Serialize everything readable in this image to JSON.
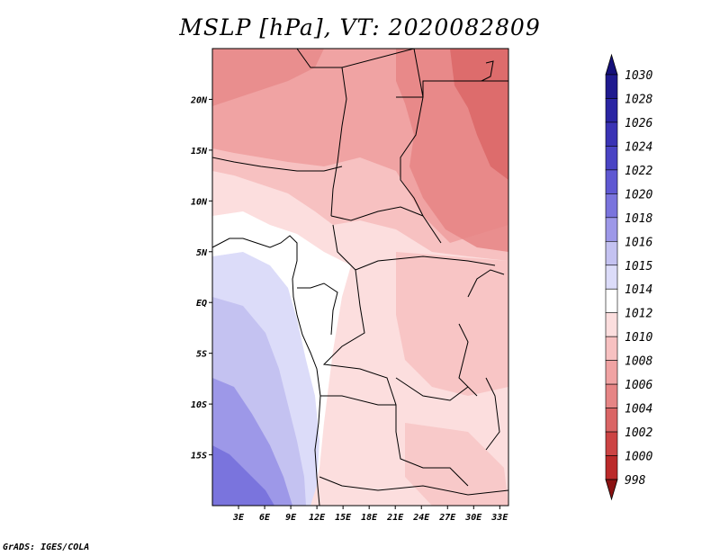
{
  "title": "MSLP [hPa], VT: 2020082809",
  "credit": "GrADS: IGES/COLA",
  "map": {
    "region": "Central Africa",
    "variable": "Mean sea level pressure",
    "units": "hPa",
    "lon_range": [
      0,
      34
    ],
    "lat_range": [
      -20,
      25
    ],
    "lat_ticks": [
      {
        "value": 20,
        "label": "20N"
      },
      {
        "value": 15,
        "label": "15N"
      },
      {
        "value": 10,
        "label": "10N"
      },
      {
        "value": 5,
        "label": "5N"
      },
      {
        "value": 0,
        "label": "EQ"
      },
      {
        "value": -5,
        "label": "5S"
      },
      {
        "value": -10,
        "label": "10S"
      },
      {
        "value": -15,
        "label": "15S"
      }
    ],
    "lon_ticks": [
      {
        "value": 3,
        "label": "3E"
      },
      {
        "value": 6,
        "label": "6E"
      },
      {
        "value": 9,
        "label": "9E"
      },
      {
        "value": 12,
        "label": "12E"
      },
      {
        "value": 15,
        "label": "15E"
      },
      {
        "value": 18,
        "label": "18E"
      },
      {
        "value": 21,
        "label": "21E"
      },
      {
        "value": 24,
        "label": "24E"
      },
      {
        "value": 27,
        "label": "27E"
      },
      {
        "value": 30,
        "label": "30E"
      },
      {
        "value": 33,
        "label": "33E"
      }
    ]
  },
  "colorbar": {
    "levels": [
      {
        "label": "1030",
        "color": "#1f1a8f"
      },
      {
        "label": "1028",
        "color": "#2a25a3"
      },
      {
        "label": "1026",
        "color": "#3a33b5"
      },
      {
        "label": "1024",
        "color": "#4a44c4"
      },
      {
        "label": "1022",
        "color": "#5f58d2"
      },
      {
        "label": "1020",
        "color": "#7a74dd"
      },
      {
        "label": "1018",
        "color": "#9d98e8"
      },
      {
        "label": "1016",
        "color": "#c4c2f1"
      },
      {
        "label": "1015",
        "color": "#dcdcf9"
      },
      {
        "label": "1014",
        "color": "#ffffff"
      },
      {
        "label": "1012",
        "color": "#fcdede"
      },
      {
        "label": "1010",
        "color": "#f7c1c1"
      },
      {
        "label": "1008",
        "color": "#f0a3a3"
      },
      {
        "label": "1006",
        "color": "#e68585"
      },
      {
        "label": "1004",
        "color": "#da6565"
      },
      {
        "label": "1002",
        "color": "#cc4444"
      },
      {
        "label": "1000",
        "color": "#bb2a2a"
      },
      {
        "label": "998",
        "color": "#a01818"
      }
    ],
    "top_arrow_color": "#15107a",
    "bottom_arrow_color": "#8a1212"
  }
}
